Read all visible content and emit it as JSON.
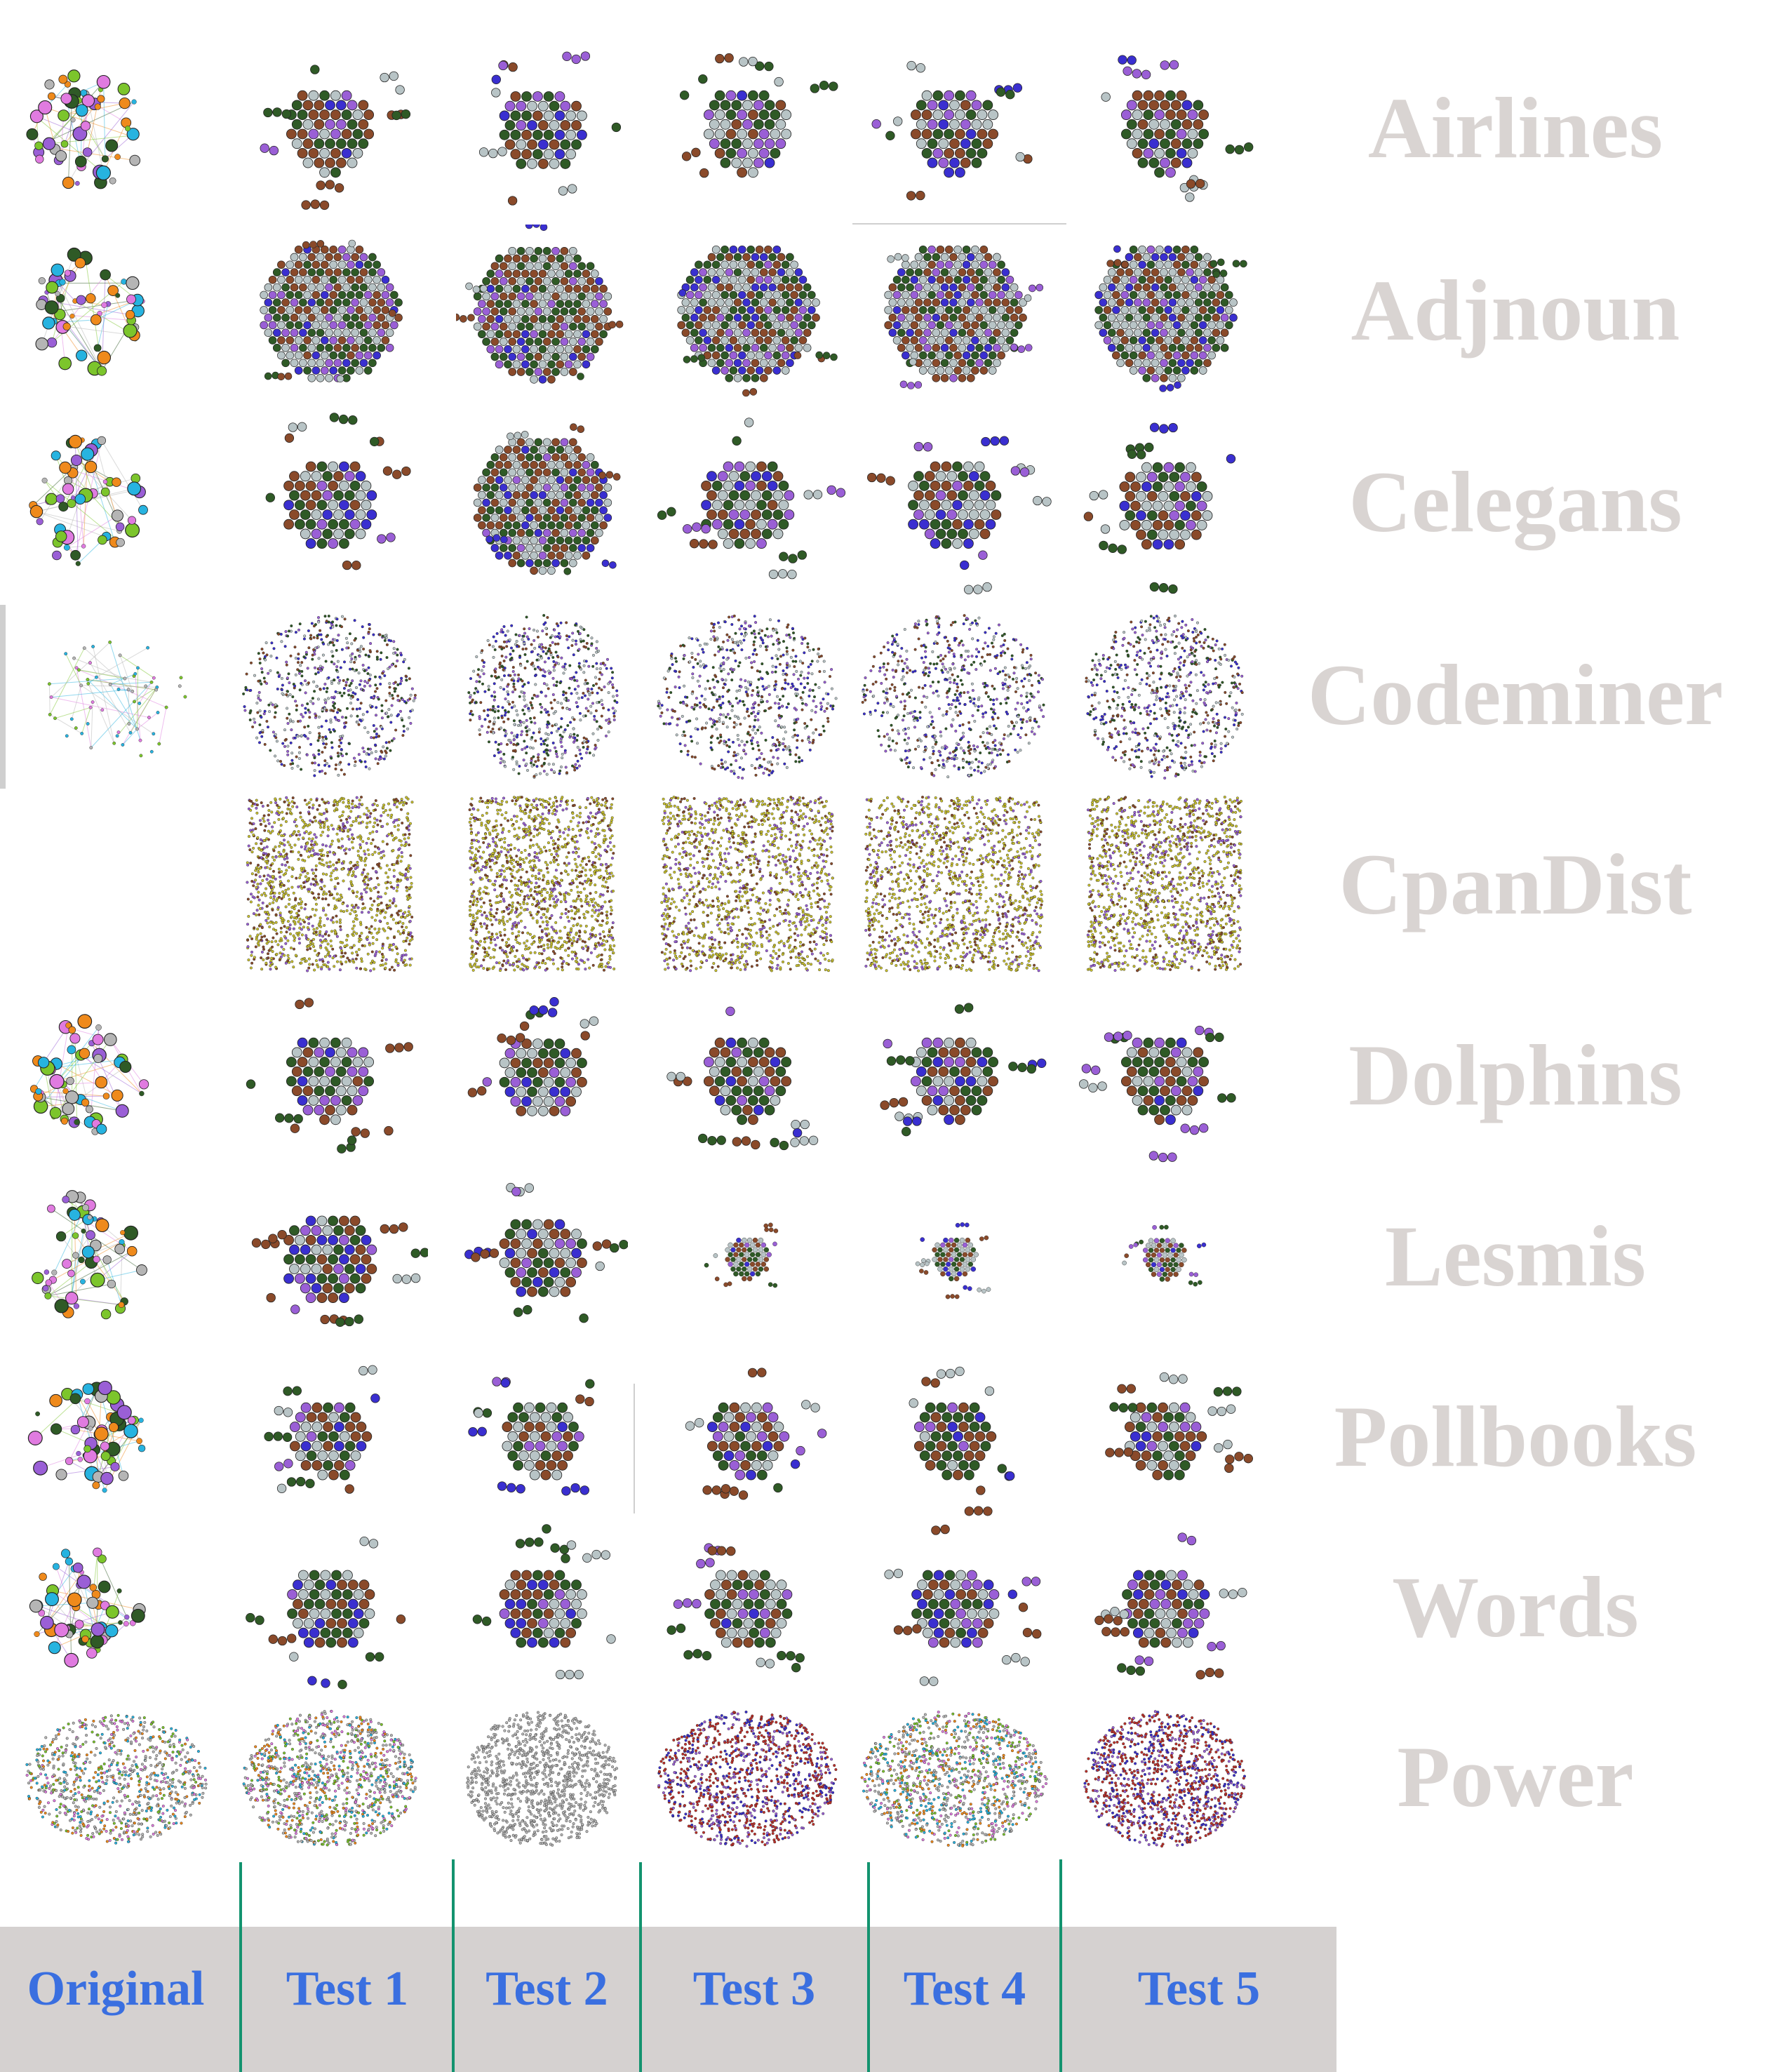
{
  "datasets": [
    "Airlines",
    "Adjnoun",
    "Celegans",
    "Codeminer",
    "CpanDist",
    "Dolphins",
    "Lesmis",
    "Pollbooks",
    "Words",
    "Power"
  ],
  "columns": [
    "Original",
    "Test 1",
    "Test 2",
    "Test 3",
    "Test 4",
    "Test 5"
  ],
  "colors": {
    "label_gray": "#d9d4d2",
    "header_blue": "#3a6fe0",
    "divider_green": "#13936f",
    "footer_gray": "#d5d1d0",
    "node_brown": "#8a4a2a",
    "node_dark_green": "#2f5a26",
    "node_blue": "#3a2fd0",
    "node_purple": "#9a5fd6",
    "node_light": "#b8c4c6",
    "node_olive": "#c9c12e",
    "node_red": "#c0302a",
    "node_cyan": "#27b3e0",
    "node_lime": "#7cc52c",
    "node_pink": "#e07be0",
    "node_orange": "#ef8a1c",
    "node_gray": "#b5b5b5"
  }
}
